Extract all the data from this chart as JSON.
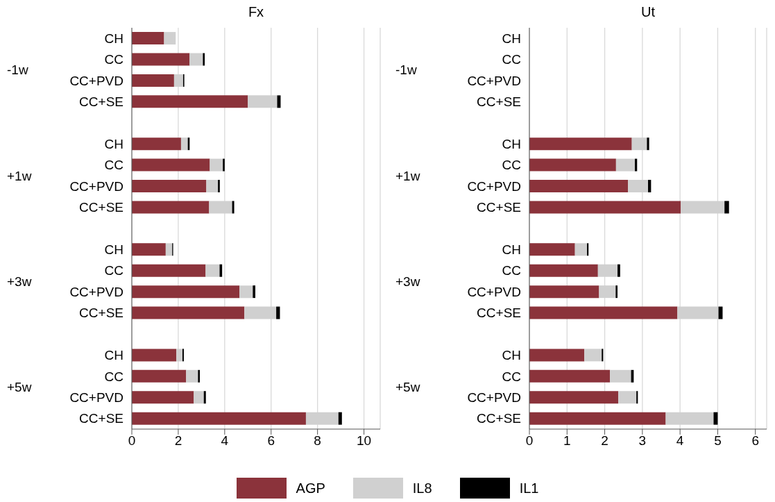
{
  "chart_data": [
    {
      "type": "bar",
      "orientation": "horizontal",
      "stacked": true,
      "title": "Fx",
      "categories": [
        "CH",
        "CC",
        "CC+PVD",
        "CC+SE",
        null,
        "CH",
        "CC",
        "CC+PVD",
        "CC+SE",
        null,
        "CH",
        "CC",
        "CC+PVD",
        "CC+SE",
        null,
        "CH",
        "CC",
        "CC+PVD",
        "CC+SE"
      ],
      "annotations": [
        "-1w",
        "+1w",
        "+3w",
        "+5w"
      ],
      "xlim": [
        0,
        10.7
      ],
      "xticks": [
        0,
        2,
        4,
        6,
        8,
        10
      ],
      "grid": "x",
      "legend": "bottom",
      "series": [
        {
          "name": "AGP",
          "color": "#8b333b",
          "values": [
            1.39,
            2.49,
            1.82,
            5.0,
            null,
            2.12,
            3.36,
            3.21,
            3.33,
            null,
            1.46,
            3.18,
            4.64,
            4.85,
            null,
            1.92,
            2.34,
            2.67,
            7.5
          ]
        },
        {
          "name": "IL8",
          "color": "#d0d0d0",
          "values": [
            0.5,
            0.57,
            0.39,
            1.26,
            null,
            0.29,
            0.56,
            0.5,
            0.99,
            null,
            0.28,
            0.6,
            0.57,
            1.37,
            null,
            0.26,
            0.51,
            0.43,
            1.4
          ]
        },
        {
          "name": "IL1",
          "color": "#000000",
          "values": [
            null,
            0.08,
            0.05,
            0.15,
            null,
            0.08,
            0.08,
            0.08,
            0.09,
            null,
            0.04,
            0.11,
            0.11,
            0.16,
            null,
            0.06,
            0.08,
            0.09,
            0.15
          ]
        }
      ]
    },
    {
      "type": "bar",
      "orientation": "horizontal",
      "stacked": true,
      "title": "Ut",
      "categories": [
        "CH",
        "CC",
        "CC+PVD",
        "CC+SE",
        null,
        "CH",
        "CC",
        "CC+PVD",
        "CC+SE",
        null,
        "CH",
        "CC",
        "CC+PVD",
        "CC+SE",
        null,
        "CH",
        "CC",
        "CC+PVD",
        "CC+SE"
      ],
      "annotations": [
        "-1w",
        "+1w",
        "+3w",
        "+5w"
      ],
      "xlim": [
        0,
        6.3
      ],
      "xticks": [
        0,
        1,
        2,
        3,
        4,
        5,
        6
      ],
      "grid": "x",
      "legend": "bottom",
      "series": [
        {
          "name": "AGP",
          "color": "#8b333b",
          "values": [
            null,
            null,
            null,
            null,
            null,
            2.72,
            2.3,
            2.62,
            4.02,
            null,
            1.21,
            1.82,
            1.85,
            3.93,
            null,
            1.46,
            2.14,
            2.36,
            3.62
          ]
        },
        {
          "name": "IL8",
          "color": "#d0d0d0",
          "values": [
            null,
            null,
            null,
            null,
            null,
            0.4,
            0.5,
            0.53,
            1.16,
            null,
            0.32,
            0.52,
            0.44,
            1.09,
            null,
            0.46,
            0.56,
            0.48,
            1.27
          ]
        },
        {
          "name": "IL1",
          "color": "#000000",
          "values": [
            null,
            null,
            null,
            null,
            null,
            0.06,
            0.06,
            0.08,
            0.12,
            null,
            0.04,
            0.07,
            0.05,
            0.11,
            null,
            0.04,
            0.07,
            0.04,
            0.11
          ]
        }
      ]
    }
  ]
}
